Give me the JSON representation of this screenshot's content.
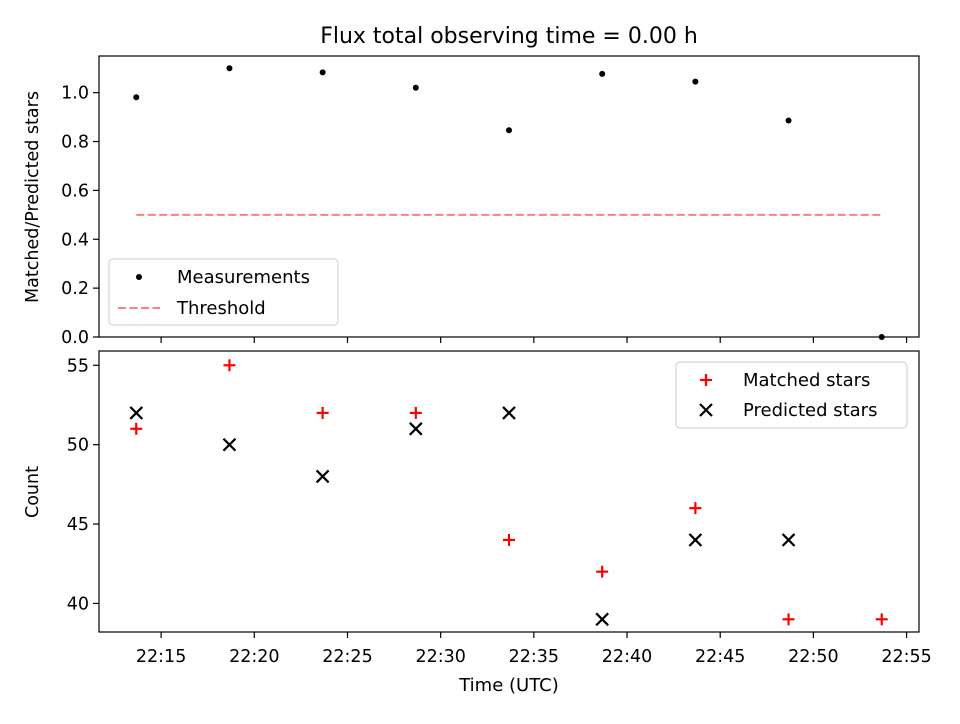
{
  "chart_data": [
    {
      "type": "scatter",
      "title": "Flux total observing time = 0.00 h",
      "ylabel": "Matched/Predicted stars",
      "ylim": [
        0,
        1.15
      ],
      "yticks": [
        "0.0",
        "0.2",
        "0.4",
        "0.6",
        "0.8",
        "1.0"
      ],
      "series": [
        {
          "name": "Measurements",
          "marker": "dot",
          "color": "#000000",
          "x": [
            "22:13:40",
            "22:18:40",
            "22:23:40",
            "22:28:40",
            "22:33:40",
            "22:38:40",
            "22:43:40",
            "22:48:40",
            "22:53:40"
          ],
          "values": [
            0.981,
            1.1,
            1.083,
            1.02,
            0.846,
            1.077,
            1.045,
            0.886,
            0.0
          ]
        },
        {
          "name": "Threshold",
          "marker": "dashed-line",
          "color": "#ff7f7f",
          "x": [
            "22:13:40",
            "22:53:40"
          ],
          "values": [
            0.5,
            0.5
          ]
        }
      ],
      "legend": "lower-left"
    },
    {
      "type": "scatter",
      "xlabel": "Time (UTC)",
      "ylabel": "Count",
      "ylim": [
        38.2,
        55.9
      ],
      "yticks": [
        "40",
        "45",
        "50",
        "55"
      ],
      "xlim": [
        "22:11:40",
        "22:55:40"
      ],
      "xticks": [
        "22:15",
        "22:20",
        "22:25",
        "22:30",
        "22:35",
        "22:40",
        "22:45",
        "22:50",
        "22:55"
      ],
      "series": [
        {
          "name": "Matched stars",
          "marker": "plus",
          "color": "#ff0000",
          "x": [
            "22:13:40",
            "22:18:40",
            "22:23:40",
            "22:28:40",
            "22:33:40",
            "22:38:40",
            "22:43:40",
            "22:48:40",
            "22:53:40"
          ],
          "values": [
            51,
            55,
            52,
            52,
            44,
            42,
            46,
            39,
            39
          ]
        },
        {
          "name": "Predicted stars",
          "marker": "x",
          "color": "#000000",
          "x": [
            "22:13:40",
            "22:18:40",
            "22:23:40",
            "22:28:40",
            "22:33:40",
            "22:38:40",
            "22:43:40",
            "22:48:40"
          ],
          "values": [
            52,
            50,
            48,
            51,
            52,
            39,
            44,
            44
          ]
        }
      ],
      "legend": "upper-right"
    }
  ]
}
